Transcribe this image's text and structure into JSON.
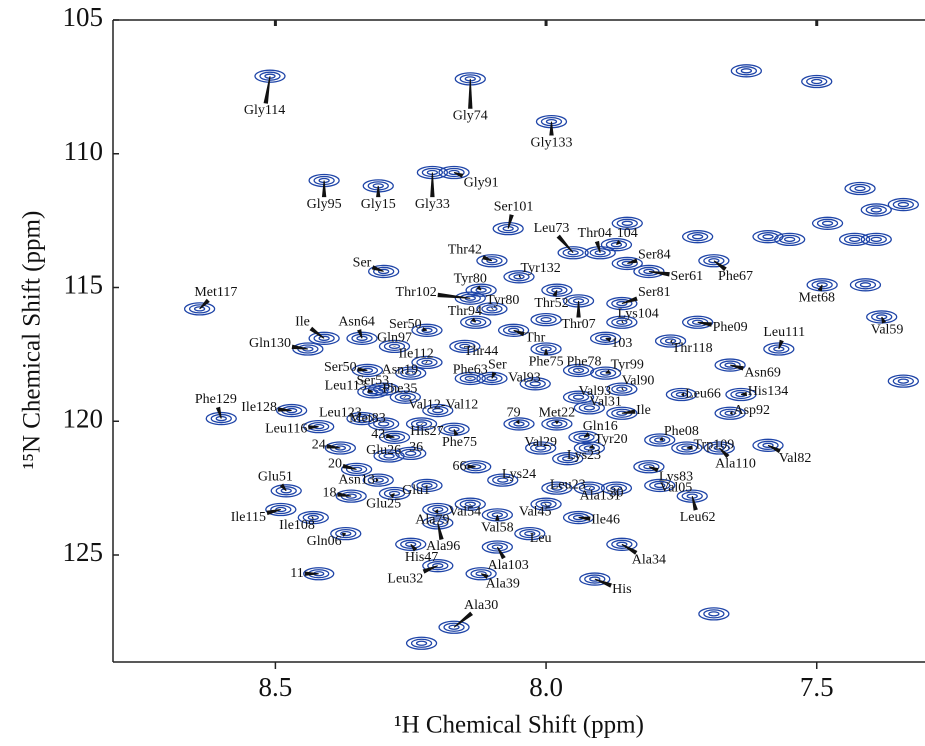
{
  "chart_data": {
    "type": "scatter",
    "xlabel": "¹H Chemical Shift (ppm)",
    "ylabel": "¹⁵N Chemical Shift (ppm)",
    "xlim": [
      8.8,
      7.3
    ],
    "ylim": [
      129,
      105
    ],
    "xticks": [
      8.5,
      {
        "value": 8,
        "label": "8.0"
      },
      7.5
    ],
    "yticks": [
      105,
      110,
      115,
      120,
      125
    ],
    "color": "#1f45a8",
    "labels": [
      {
        "text": "Gly114",
        "text_x": 8.52,
        "text_y": 108.4,
        "x": 8.51,
        "y": 107.1
      },
      {
        "text": "Gly74",
        "text_x": 8.14,
        "text_y": 108.6,
        "x": 8.14,
        "y": 107.2
      },
      {
        "text": "Gly133",
        "text_x": 7.99,
        "text_y": 109.6,
        "x": 7.99,
        "y": 108.8
      },
      {
        "text": "Gly91",
        "text_x": 8.12,
        "text_y": 111.1,
        "x": 8.17,
        "y": 110.7
      },
      {
        "text": "Gly95",
        "text_x": 8.41,
        "text_y": 111.9,
        "x": 8.41,
        "y": 111.0
      },
      {
        "text": "Gly15",
        "text_x": 8.31,
        "text_y": 111.9,
        "x": 8.31,
        "y": 111.2
      },
      {
        "text": "Gly33",
        "text_x": 8.21,
        "text_y": 111.9,
        "x": 8.21,
        "y": 110.7
      },
      {
        "text": "Ser101",
        "text_x": 8.06,
        "text_y": 112.0,
        "x": 8.07,
        "y": 112.8
      },
      {
        "text": "Leu73",
        "text_x": 7.99,
        "text_y": 112.8,
        "x": 7.95,
        "y": 113.7
      },
      {
        "text": "Thr04",
        "text_x": 7.91,
        "text_y": 113.0,
        "x": 7.9,
        "y": 113.7
      },
      {
        "text": "104",
        "text_x": 7.85,
        "text_y": 113.0,
        "x": 7.87,
        "y": 113.4
      },
      {
        "text": "Ser84",
        "text_x": 7.8,
        "text_y": 113.8,
        "x": 7.85,
        "y": 114.1
      },
      {
        "text": "Thr42",
        "text_x": 8.15,
        "text_y": 113.6,
        "x": 8.1,
        "y": 114.0
      },
      {
        "text": "Tyr132",
        "text_x": 8.01,
        "text_y": 114.3,
        "x": 8.05,
        "y": 114.6
      },
      {
        "text": "Ser",
        "text_x": 8.34,
        "text_y": 114.1,
        "x": 8.3,
        "y": 114.4
      },
      {
        "text": "Ser61",
        "text_x": 7.74,
        "text_y": 114.6,
        "x": 7.81,
        "y": 114.4
      },
      {
        "text": "Phe67",
        "text_x": 7.65,
        "text_y": 114.6,
        "x": 7.69,
        "y": 114.0
      },
      {
        "text": "Tyr80",
        "text_x": 8.14,
        "text_y": 114.7,
        "x": 8.12,
        "y": 115.1
      },
      {
        "text": "Met117",
        "text_x": 8.61,
        "text_y": 115.2,
        "x": 8.64,
        "y": 115.8
      },
      {
        "text": "Thr102",
        "text_x": 8.24,
        "text_y": 115.2,
        "x": 8.14,
        "y": 115.4
      },
      {
        "text": "Tyr80",
        "text_x": 8.08,
        "text_y": 115.5,
        "x": 8.1,
        "y": 115.8
      },
      {
        "text": "Thr52",
        "text_x": 7.99,
        "text_y": 115.6,
        "x": 7.98,
        "y": 115.1
      },
      {
        "text": "Ser81",
        "text_x": 7.8,
        "text_y": 115.2,
        "x": 7.86,
        "y": 115.6
      },
      {
        "text": "Met68",
        "text_x": 7.5,
        "text_y": 115.4,
        "x": 7.49,
        "y": 114.9
      },
      {
        "text": "Ile",
        "text_x": 8.45,
        "text_y": 116.3,
        "x": 8.41,
        "y": 116.9
      },
      {
        "text": "Asn64",
        "text_x": 8.35,
        "text_y": 116.3,
        "x": 8.34,
        "y": 116.9
      },
      {
        "text": "Thr94",
        "text_x": 8.15,
        "text_y": 115.9,
        "x": 8.13,
        "y": 116.3
      },
      {
        "text": "Thr07",
        "text_x": 7.94,
        "text_y": 116.4,
        "x": 7.94,
        "y": 115.5
      },
      {
        "text": "Lys104",
        "text_x": 7.83,
        "text_y": 116.0,
        "x": 7.86,
        "y": 116.3
      },
      {
        "text": "Phe09",
        "text_x": 7.66,
        "text_y": 116.5,
        "x": 7.72,
        "y": 116.3
      },
      {
        "text": "Ser50",
        "text_x": 8.26,
        "text_y": 116.4,
        "x": 8.22,
        "y": 116.6
      },
      {
        "text": "Thr",
        "text_x": 8.02,
        "text_y": 116.9,
        "x": 8.06,
        "y": 116.6
      },
      {
        "text": "Val59",
        "text_x": 7.37,
        "text_y": 116.6,
        "x": 7.38,
        "y": 116.1
      },
      {
        "text": "Gln130",
        "text_x": 8.51,
        "text_y": 117.1,
        "x": 8.44,
        "y": 117.3
      },
      {
        "text": "Gln97",
        "text_x": 8.28,
        "text_y": 116.9,
        "x": 8.28,
        "y": 117.2
      },
      {
        "text": "Thr44",
        "text_x": 8.12,
        "text_y": 117.4,
        "x": 8.15,
        "y": 117.2
      },
      {
        "text": "103",
        "text_x": 7.86,
        "text_y": 117.1,
        "x": 7.89,
        "y": 116.9
      },
      {
        "text": "Thr118",
        "text_x": 7.73,
        "text_y": 117.3,
        "x": 7.77,
        "y": 117.0
      },
      {
        "text": "Leu111",
        "text_x": 7.56,
        "text_y": 116.7,
        "x": 7.57,
        "y": 117.3
      },
      {
        "text": "Ile112",
        "text_x": 8.24,
        "text_y": 117.5,
        "x": 8.22,
        "y": 117.8
      },
      {
        "text": "Phe75",
        "text_x": 8.0,
        "text_y": 117.8,
        "x": 8.0,
        "y": 117.3
      },
      {
        "text": "Phe78",
        "text_x": 7.93,
        "text_y": 117.8,
        "x": 7.94,
        "y": 118.1
      },
      {
        "text": "Tyr99",
        "text_x": 7.85,
        "text_y": 117.9,
        "x": 7.89,
        "y": 118.2
      },
      {
        "text": "Asn69",
        "text_x": 7.6,
        "text_y": 118.2,
        "x": 7.66,
        "y": 117.9
      },
      {
        "text": "Ser50",
        "text_x": 8.38,
        "text_y": 118.0,
        "x": 8.33,
        "y": 118.1
      },
      {
        "text": "Asn19",
        "text_x": 8.27,
        "text_y": 118.1,
        "x": 8.25,
        "y": 118.2
      },
      {
        "text": "Phe63",
        "text_x": 8.14,
        "text_y": 118.1,
        "x": 8.14,
        "y": 118.4
      },
      {
        "text": "Ser",
        "text_x": 8.09,
        "text_y": 117.9,
        "x": 8.1,
        "y": 118.4
      },
      {
        "text": "Val93",
        "text_x": 8.04,
        "text_y": 118.4,
        "x": 8.02,
        "y": 118.6
      },
      {
        "text": "Val90",
        "text_x": 7.83,
        "text_y": 118.5,
        "x": 7.86,
        "y": 118.8
      },
      {
        "text": "Leu113",
        "text_x": 8.37,
        "text_y": 118.7,
        "x": 8.32,
        "y": 118.9
      },
      {
        "text": "Ser53",
        "text_x": 8.32,
        "text_y": 118.5,
        "x": 8.3,
        "y": 118.8
      },
      {
        "text": "Phe35",
        "text_x": 8.27,
        "text_y": 118.8,
        "x": 8.26,
        "y": 119.1
      },
      {
        "text": "Val93",
        "text_x": 7.91,
        "text_y": 118.9,
        "x": 7.94,
        "y": 119.1
      },
      {
        "text": "Leu66",
        "text_x": 7.71,
        "text_y": 119.0,
        "x": 7.75,
        "y": 119.0
      },
      {
        "text": "His134",
        "text_x": 7.59,
        "text_y": 118.9,
        "x": 7.64,
        "y": 119.0
      },
      {
        "text": "Ile128",
        "text_x": 8.53,
        "text_y": 119.5,
        "x": 8.47,
        "y": 119.6
      },
      {
        "text": "Val12-Val12",
        "text_x": 8.19,
        "text_y": 119.4,
        "x": 8.2,
        "y": 119.6
      },
      {
        "text": "Val31",
        "text_x": 7.89,
        "text_y": 119.3,
        "x": 7.92,
        "y": 119.5
      },
      {
        "text": "Asp92",
        "text_x": 7.62,
        "text_y": 119.6,
        "x": 7.66,
        "y": 119.7
      },
      {
        "text": "Phe129",
        "text_x": 8.61,
        "text_y": 119.2,
        "x": 8.6,
        "y": 119.9
      },
      {
        "text": "Leu123",
        "text_x": 8.38,
        "text_y": 119.7,
        "x": 8.34,
        "y": 119.9
      },
      {
        "text": "Met83",
        "text_x": 8.33,
        "text_y": 119.9,
        "x": 8.3,
        "y": 120.1
      },
      {
        "text": "79",
        "text_x": 8.06,
        "text_y": 119.7,
        "x": 8.05,
        "y": 120.1
      },
      {
        "text": "Met22",
        "text_x": 7.98,
        "text_y": 119.7,
        "x": 7.98,
        "y": 120.1
      },
      {
        "text": "Ile",
        "text_x": 7.82,
        "text_y": 119.6,
        "x": 7.86,
        "y": 119.7
      },
      {
        "text": "Leu116",
        "text_x": 8.48,
        "text_y": 120.3,
        "x": 8.42,
        "y": 120.2
      },
      {
        "text": "43",
        "text_x": 8.31,
        "text_y": 120.5,
        "x": 8.28,
        "y": 120.6
      },
      {
        "text": "His27",
        "text_x": 8.22,
        "text_y": 120.4,
        "x": 8.23,
        "y": 120.1
      },
      {
        "text": "Gln16",
        "text_x": 7.9,
        "text_y": 120.2,
        "x": 7.93,
        "y": 120.6
      },
      {
        "text": "Phe08",
        "text_x": 7.75,
        "text_y": 120.4,
        "x": 7.79,
        "y": 120.7
      },
      {
        "text": "Trp109",
        "text_x": 7.69,
        "text_y": 120.9,
        "x": 7.74,
        "y": 121.0
      },
      {
        "text": "Phe75",
        "text_x": 8.16,
        "text_y": 120.8,
        "x": 8.17,
        "y": 120.3
      },
      {
        "text": "Val29",
        "text_x": 8.01,
        "text_y": 120.8,
        "x": 8.01,
        "y": 121.0
      },
      {
        "text": "Tyr20",
        "text_x": 7.88,
        "text_y": 120.7,
        "x": 7.92,
        "y": 121.0
      },
      {
        "text": "24",
        "text_x": 8.42,
        "text_y": 120.9,
        "x": 8.38,
        "y": 121.0
      },
      {
        "text": "Glu26",
        "text_x": 8.3,
        "text_y": 121.1,
        "x": 8.29,
        "y": 121.3
      },
      {
        "text": "36",
        "text_x": 8.24,
        "text_y": 121.0,
        "x": 8.25,
        "y": 121.2
      },
      {
        "text": "Ala110",
        "text_x": 7.65,
        "text_y": 121.6,
        "x": 7.68,
        "y": 121.0
      },
      {
        "text": "Val82",
        "text_x": 7.54,
        "text_y": 121.4,
        "x": 7.59,
        "y": 120.9
      },
      {
        "text": "Lys23",
        "text_x": 7.93,
        "text_y": 121.3,
        "x": 7.96,
        "y": 121.4
      },
      {
        "text": "66",
        "text_x": 8.16,
        "text_y": 121.7,
        "x": 8.13,
        "y": 121.7
      },
      {
        "text": "Lys24",
        "text_x": 8.05,
        "text_y": 122.0,
        "x": 8.08,
        "y": 122.2
      },
      {
        "text": "Lys83",
        "text_x": 7.76,
        "text_y": 122.1,
        "x": 7.81,
        "y": 121.7
      },
      {
        "text": "20",
        "text_x": 8.39,
        "text_y": 121.6,
        "x": 8.35,
        "y": 121.8
      },
      {
        "text": "Asn13",
        "text_x": 8.35,
        "text_y": 122.2,
        "x": 8.31,
        "y": 122.2
      },
      {
        "text": "Glu51",
        "text_x": 8.5,
        "text_y": 122.1,
        "x": 8.48,
        "y": 122.6
      },
      {
        "text": "Leu23",
        "text_x": 7.96,
        "text_y": 122.4,
        "x": 7.98,
        "y": 122.5
      },
      {
        "text": "Val05",
        "text_x": 7.76,
        "text_y": 122.5,
        "x": 7.79,
        "y": 122.4
      },
      {
        "text": "Glu1",
        "text_x": 8.24,
        "text_y": 122.6,
        "x": 8.22,
        "y": 122.4
      },
      {
        "text": "18",
        "text_x": 8.4,
        "text_y": 122.7,
        "x": 8.36,
        "y": 122.8
      },
      {
        "text": "Glu25",
        "text_x": 8.3,
        "text_y": 123.1,
        "x": 8.28,
        "y": 122.7
      },
      {
        "text": "Ala131",
        "text_x": 7.9,
        "text_y": 122.8,
        "x": 7.92,
        "y": 122.5
      },
      {
        "text": "30",
        "text_x": 7.87,
        "text_y": 122.7,
        "x": 7.87,
        "y": 122.5
      },
      {
        "text": "Leu62",
        "text_x": 7.72,
        "text_y": 123.6,
        "x": 7.73,
        "y": 122.8
      },
      {
        "text": "Ala79",
        "text_x": 8.21,
        "text_y": 123.7,
        "x": 8.2,
        "y": 123.3
      },
      {
        "text": "Val54",
        "text_x": 8.15,
        "text_y": 123.4,
        "x": 8.14,
        "y": 123.1
      },
      {
        "text": "Val45",
        "text_x": 8.02,
        "text_y": 123.4,
        "x": 8.0,
        "y": 123.1
      },
      {
        "text": "Ile46",
        "text_x": 7.89,
        "text_y": 123.7,
        "x": 7.94,
        "y": 123.6
      },
      {
        "text": "Ile115",
        "text_x": 8.55,
        "text_y": 123.6,
        "x": 8.49,
        "y": 123.3
      },
      {
        "text": "Ile108",
        "text_x": 8.46,
        "text_y": 123.9,
        "x": 8.43,
        "y": 123.6
      },
      {
        "text": "Val58",
        "text_x": 8.09,
        "text_y": 124.0,
        "x": 8.09,
        "y": 123.5
      },
      {
        "text": "Leu",
        "text_x": 8.01,
        "text_y": 124.4,
        "x": 8.03,
        "y": 124.2
      },
      {
        "text": "Gln06",
        "text_x": 8.41,
        "text_y": 124.5,
        "x": 8.37,
        "y": 124.2
      },
      {
        "text": "Ala96",
        "text_x": 8.19,
        "text_y": 124.7,
        "x": 8.2,
        "y": 123.8
      },
      {
        "text": "Ala103",
        "text_x": 8.07,
        "text_y": 125.4,
        "x": 8.09,
        "y": 124.7
      },
      {
        "text": "His47",
        "text_x": 8.23,
        "text_y": 125.1,
        "x": 8.25,
        "y": 124.6
      },
      {
        "text": "Ala34",
        "text_x": 7.81,
        "text_y": 125.2,
        "x": 7.86,
        "y": 124.6
      },
      {
        "text": "11",
        "text_x": 8.46,
        "text_y": 125.7,
        "x": 8.42,
        "y": 125.7
      },
      {
        "text": "Leu32",
        "text_x": 8.26,
        "text_y": 125.9,
        "x": 8.2,
        "y": 125.4
      },
      {
        "text": "Ala39",
        "text_x": 8.08,
        "text_y": 126.1,
        "x": 8.12,
        "y": 125.7
      },
      {
        "text": "His",
        "text_x": 7.86,
        "text_y": 126.3,
        "x": 7.91,
        "y": 125.9
      },
      {
        "text": "Ala30",
        "text_x": 8.12,
        "text_y": 126.9,
        "x": 8.17,
        "y": 127.7
      }
    ],
    "unlabeled_peaks": {
      "x": [
        7.63,
        7.5,
        7.42,
        7.39,
        7.34,
        7.59,
        7.55,
        7.48,
        7.43,
        7.39,
        7.34,
        7.69,
        8.23,
        7.72,
        7.41,
        7.85,
        8.0
      ],
      "y": [
        106.9,
        107.3,
        111.3,
        112.1,
        111.9,
        113.1,
        113.2,
        112.6,
        113.2,
        113.2,
        118.5,
        127.2,
        128.3,
        113.1,
        114.9,
        112.6,
        116.2
      ]
    }
  }
}
